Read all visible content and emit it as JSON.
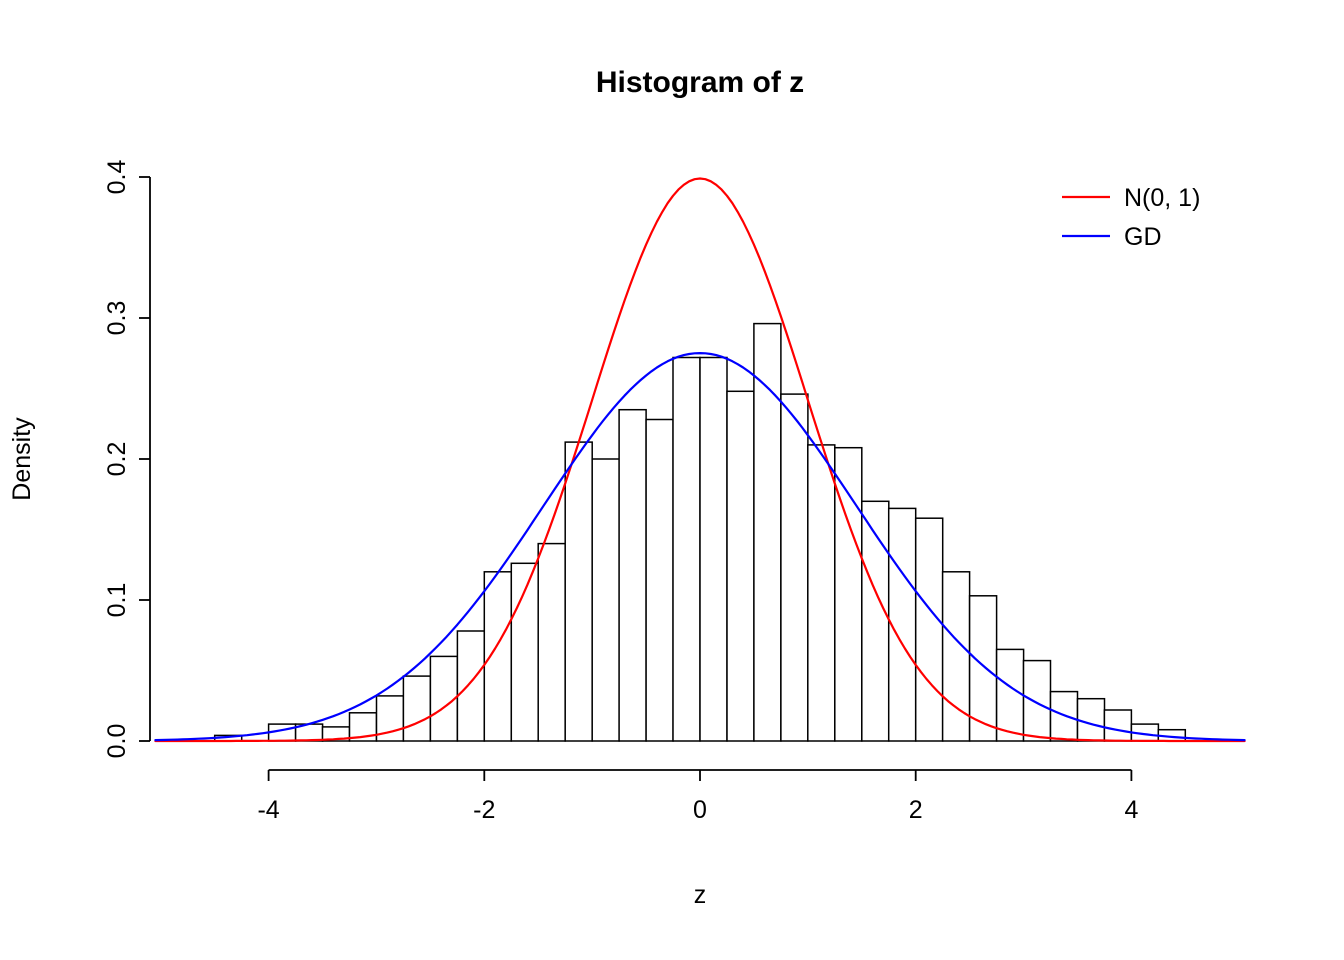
{
  "chart_data": {
    "type": "bar",
    "subtype": "histogram-with-density-curves",
    "title": "Histogram of z",
    "xlabel": "z",
    "ylabel": "Density",
    "xlim": [
      -5.1,
      5.1
    ],
    "ylim": [
      0,
      0.4
    ],
    "x_ticks": [
      -4,
      -2,
      0,
      2,
      4
    ],
    "x_tick_labels": [
      "-4",
      "-2",
      "0",
      "2",
      "4"
    ],
    "y_ticks": [
      0,
      0.1,
      0.2,
      0.3,
      0.4
    ],
    "y_tick_labels": [
      "0.0",
      "0.1",
      "0.2",
      "0.3",
      "0.4"
    ],
    "grid": false,
    "background": "#FFFFFF",
    "axis_color": "#000000",
    "bins": {
      "start": -4.5,
      "width": 0.25,
      "densities": [
        0.004,
        0.0,
        0.012,
        0.012,
        0.01,
        0.02,
        0.032,
        0.046,
        0.06,
        0.078,
        0.12,
        0.126,
        0.14,
        0.212,
        0.2,
        0.235,
        0.228,
        0.272,
        0.272,
        0.248,
        0.296,
        0.246,
        0.21,
        0.208,
        0.17,
        0.165,
        0.158,
        0.12,
        0.103,
        0.065,
        0.057,
        0.035,
        0.03,
        0.022,
        0.012,
        0.008
      ]
    },
    "bar_style": {
      "fill": "#FFFFFF",
      "stroke": "#000000"
    },
    "curves": [
      {
        "name": "N(0, 1)",
        "color": "#FF0000",
        "distribution": "normal",
        "mean": 0,
        "sd": 1.0,
        "peak_density": 0.399
      },
      {
        "name": "GD",
        "color": "#0000FF",
        "distribution": "normal",
        "mean": 0,
        "sd": 1.45,
        "peak_density": 0.275
      }
    ],
    "legend": {
      "position": "topright",
      "border": false,
      "entries": [
        {
          "label": "N(0, 1)",
          "color": "#FF0000"
        },
        {
          "label": "GD",
          "color": "#0000FF"
        }
      ]
    }
  }
}
